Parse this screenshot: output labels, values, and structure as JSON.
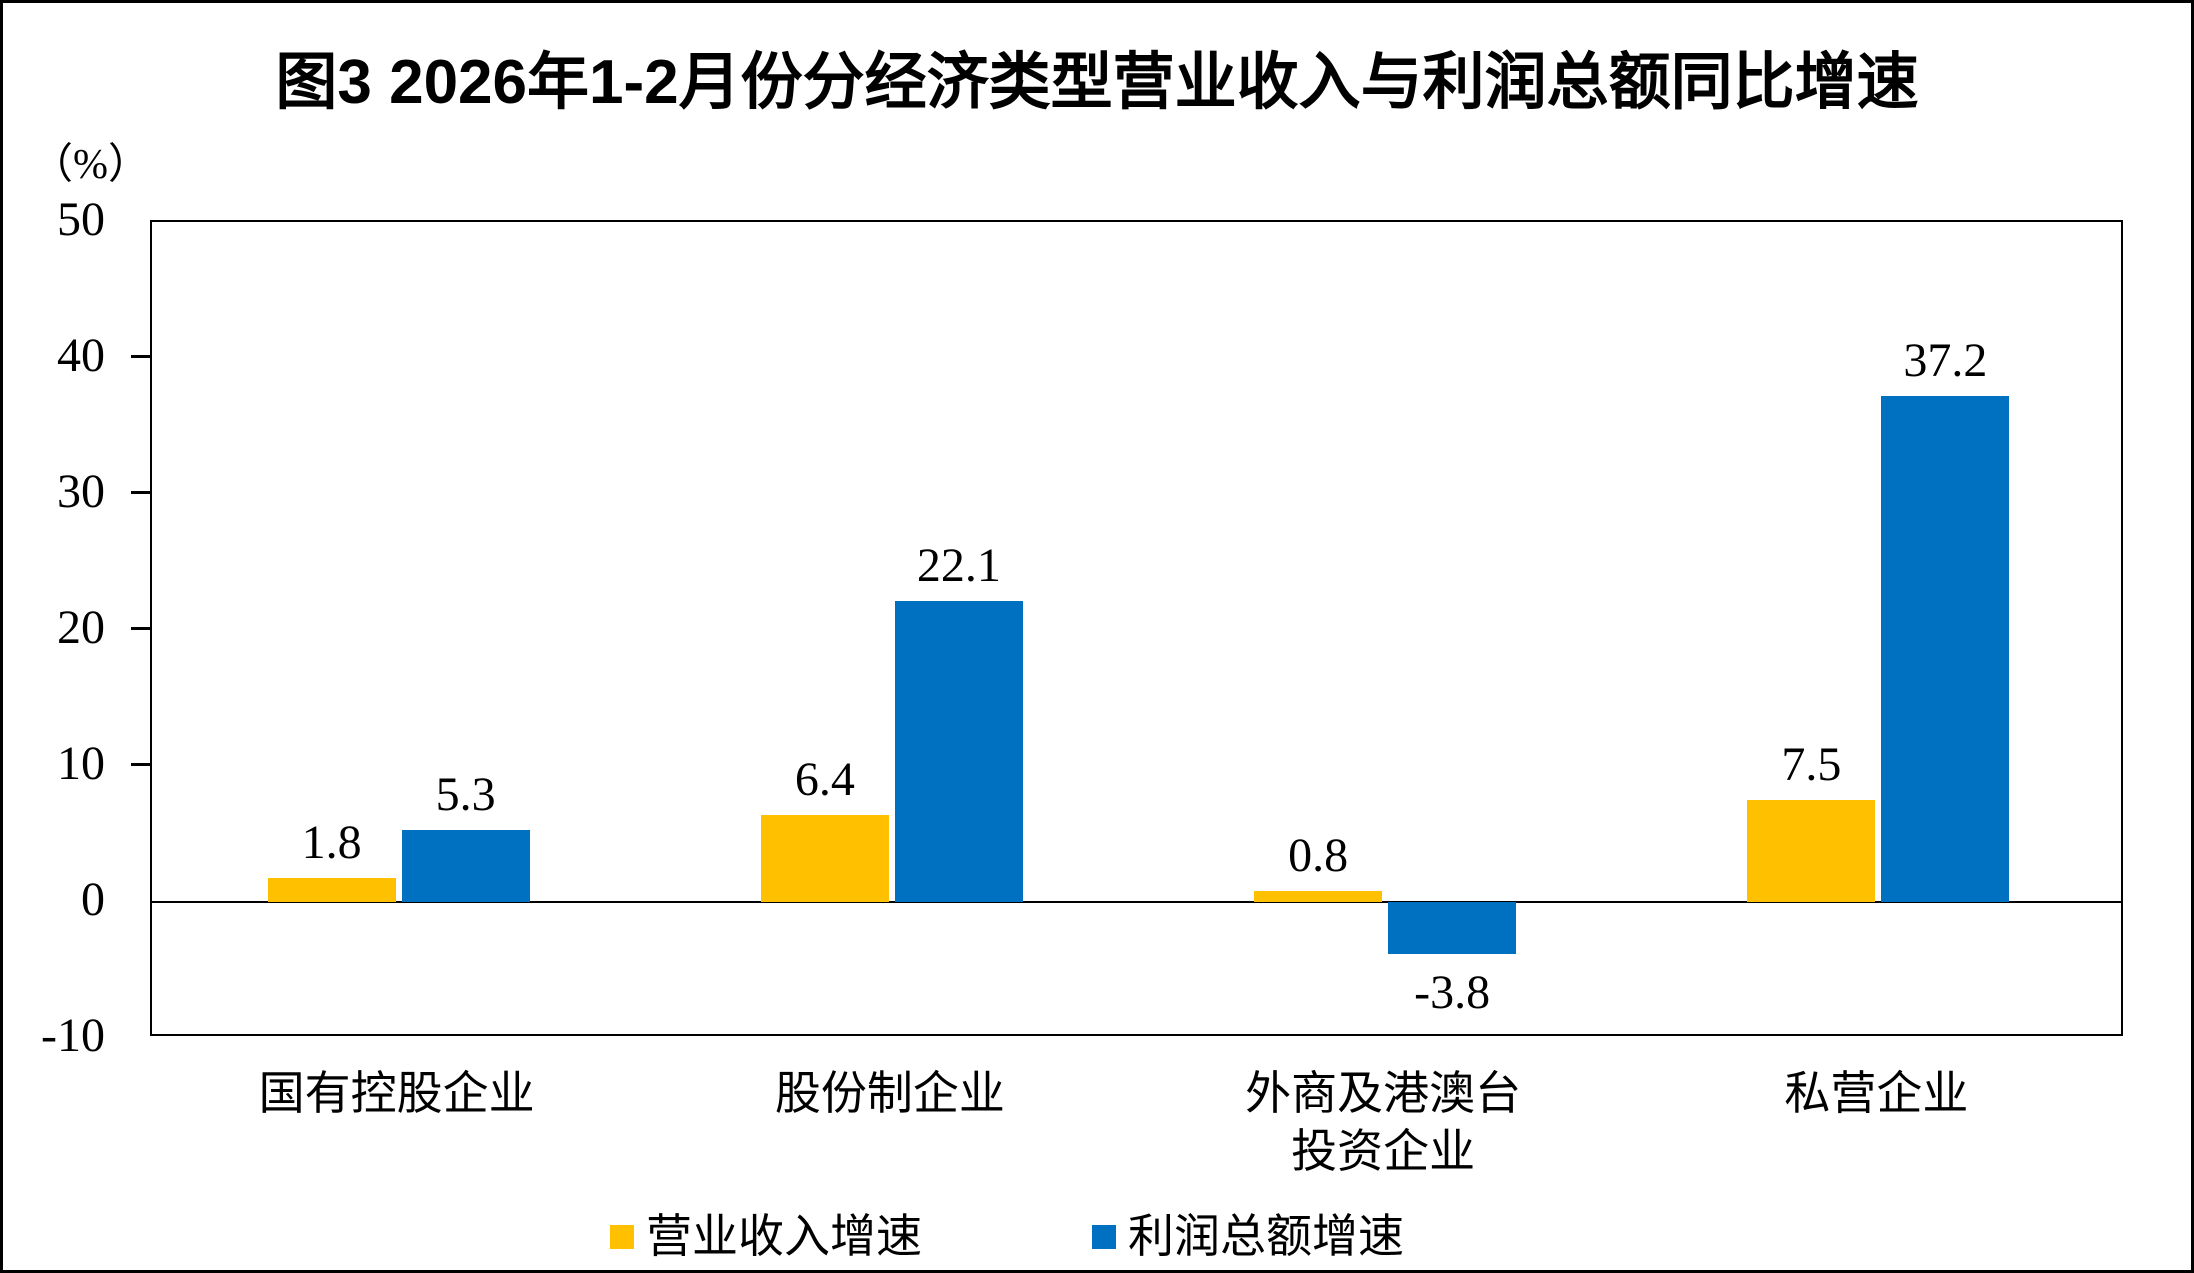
{
  "title": "图3 2026年1-2月份分经济类型营业收入与利润总额同比增速",
  "y_axis": {
    "unit_label": "（%）",
    "ticks": [
      50,
      40,
      30,
      20,
      10,
      0,
      -10
    ]
  },
  "chart_data": {
    "type": "bar",
    "title": "图3 2026年1-2月份分经济类型营业收入与利润总额同比增速",
    "ylabel": "（%）",
    "categories": [
      "国有控股企业",
      "股份制企业",
      "外商及港澳台\n投资企业",
      "私营企业"
    ],
    "series": [
      {
        "name": "营业收入增速",
        "color": "#FFC000",
        "values": [
          1.8,
          6.4,
          0.8,
          7.5
        ],
        "value_labels": [
          "1.8",
          "6.4",
          "0.8",
          "7.5"
        ]
      },
      {
        "name": "利润总额增速",
        "color": "#0070C0",
        "values": [
          5.3,
          22.1,
          -3.8,
          37.2
        ],
        "value_labels": [
          "5.3",
          "22.1",
          "-3.8",
          "37.2"
        ]
      }
    ],
    "ylim": [
      -10,
      50
    ],
    "ytick_step": 10,
    "grid": false,
    "legend_position": "bottom",
    "value_labels_shown": true,
    "axis_color": "#000000",
    "background_color": "#FFFFFF"
  }
}
